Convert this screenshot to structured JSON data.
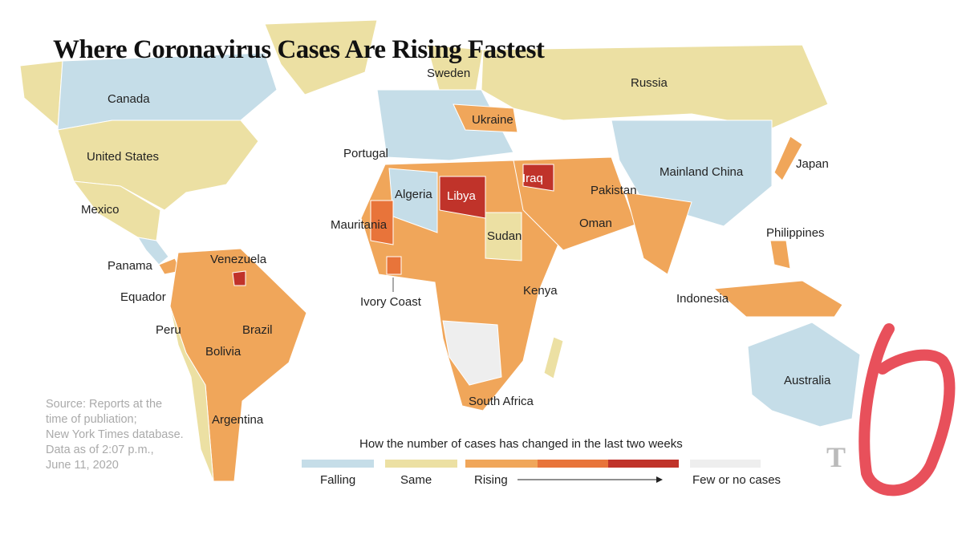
{
  "title": "Where Coronavirus Cases Are Rising Fastest",
  "labels": [
    "Canada",
    "United States",
    "Mexico",
    "Panama",
    "Venezuela",
    "Equador",
    "Peru",
    "Brazil",
    "Bolivia",
    "Argentina",
    "Sweden",
    "Russia",
    "Ukraine",
    "Portugal",
    "Algeria",
    "Libya",
    "Iraq",
    "Mauritania",
    "Sudan",
    "Ivory Coast",
    "Kenya",
    "South Africa",
    "Pakistan",
    "Oman",
    "Mainland China",
    "Japan",
    "Philippines",
    "Indonesia",
    "Australia"
  ],
  "legend": {
    "title": "How the number of cases has changed in the last two weeks",
    "items": [
      "Falling",
      "Same",
      "Rising",
      "Few or no cases"
    ]
  },
  "source": [
    "Source: Reports at the",
    "time of publiation;",
    "New York Times database.",
    "Data as of 2:07 p.m.,",
    "June 11, 2020"
  ],
  "logo": "T"
}
